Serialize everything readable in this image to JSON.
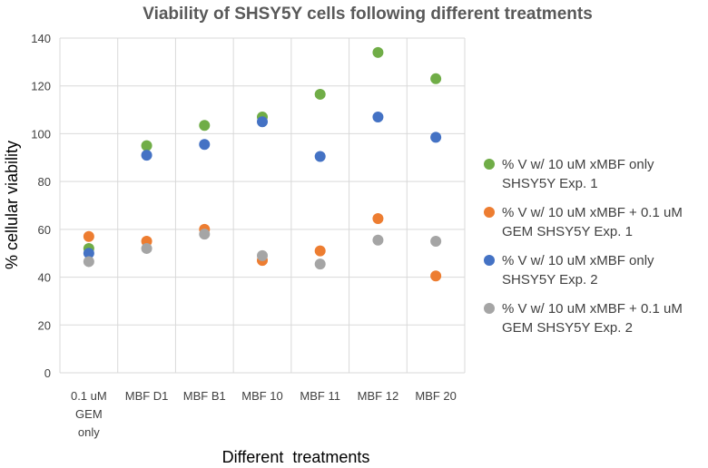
{
  "chart_data": {
    "type": "scatter",
    "title": "Viability of SHSY5Y cells following different treatments",
    "xlabel": "Different  treatments",
    "ylabel": "% cellular viability",
    "categories": [
      [
        "0.1 uM",
        "GEM",
        "only"
      ],
      [
        "MBF D1"
      ],
      [
        "MBF B1"
      ],
      [
        "MBF 10"
      ],
      [
        "MBF 11"
      ],
      [
        "MBF 12"
      ],
      [
        "MBF 20"
      ]
    ],
    "ylim": [
      0,
      140
    ],
    "yticks": [
      0,
      20,
      40,
      60,
      80,
      100,
      120,
      140
    ],
    "grid": true,
    "legend_position": "right",
    "series": [
      {
        "name": "% V w/ 10 uM xMBF only SHSY5Y Exp. 1",
        "legend_lines": [
          "% V w/ 10 uM xMBF only",
          "SHSY5Y Exp. 1"
        ],
        "color": "#70ad47",
        "values": [
          52,
          95,
          103.5,
          107,
          116.5,
          134,
          123
        ]
      },
      {
        "name": "% V w/ 10 uM xMBF + 0.1 uM GEM SHSY5Y Exp. 1",
        "legend_lines": [
          "% V w/ 10 uM xMBF + 0.1 uM",
          "GEM SHSY5Y Exp. 1"
        ],
        "color": "#ed7d31",
        "values": [
          57,
          55,
          60,
          47,
          51,
          64.5,
          40.5
        ]
      },
      {
        "name": "% V w/ 10 uM xMBF only SHSY5Y Exp. 2",
        "legend_lines": [
          "% V w/ 10 uM xMBF only",
          "SHSY5Y Exp. 2"
        ],
        "color": "#4472c4",
        "values": [
          50,
          91,
          95.5,
          105,
          90.5,
          107,
          98.5
        ]
      },
      {
        "name": "% V w/ 10 uM xMBF + 0.1 uM GEM SHSY5Y Exp. 2",
        "legend_lines": [
          "% V w/ 10 uM xMBF + 0.1 uM",
          "GEM SHSY5Y Exp. 2"
        ],
        "color": "#a5a5a5",
        "values": [
          46.5,
          52,
          58,
          49,
          45.5,
          55.5,
          55
        ]
      }
    ]
  }
}
